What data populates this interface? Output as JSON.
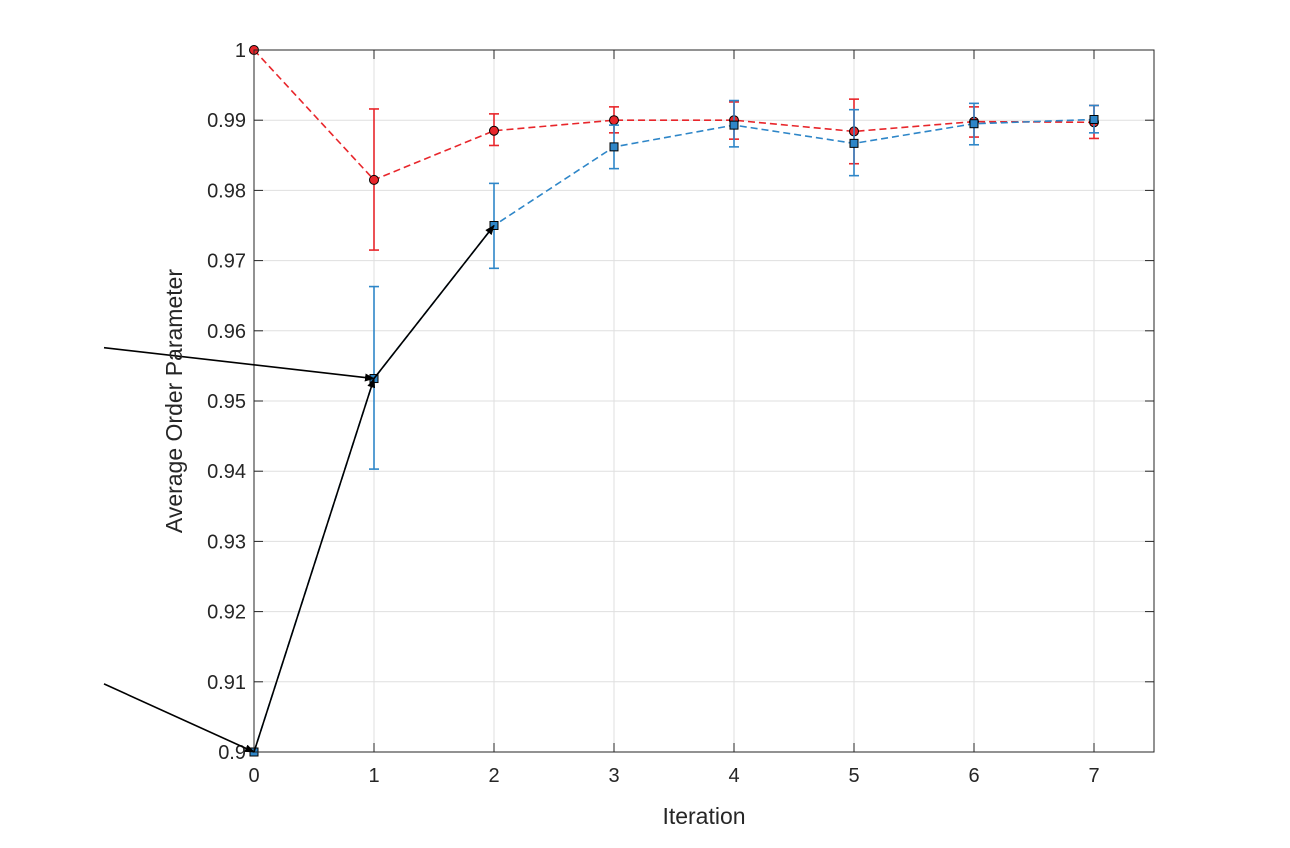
{
  "chart_data": {
    "type": "line",
    "title": "",
    "xlabel": "Iteration",
    "ylabel": "Average Order Parameter",
    "xlim": [
      0,
      7.5
    ],
    "ylim": [
      0.9,
      1.0
    ],
    "xticks": [
      0,
      1,
      2,
      3,
      4,
      5,
      6,
      7
    ],
    "yticks": [
      0.9,
      0.91,
      0.92,
      0.93,
      0.94,
      0.95,
      0.96,
      0.97,
      0.98,
      0.99,
      1.0
    ],
    "xtick_labels": [
      "0",
      "1",
      "2",
      "3",
      "4",
      "5",
      "6",
      "7"
    ],
    "ytick_labels": [
      "0.9",
      "0.91",
      "0.92",
      "0.93",
      "0.94",
      "0.95",
      "0.96",
      "0.97",
      "0.98",
      "0.99",
      "1"
    ],
    "grid": true,
    "legend": "none",
    "series": [
      {
        "color": "#e8262b",
        "marker": "circle",
        "line_style": "dashed",
        "x": [
          0,
          1,
          2,
          3,
          4,
          5,
          6,
          7
        ],
        "y": [
          1.0,
          0.9815,
          0.9885,
          0.99,
          0.99,
          0.9884,
          0.9898,
          0.9897
        ],
        "err_low": [
          null,
          0.9715,
          0.9864,
          0.9882,
          0.9873,
          0.9838,
          0.9876,
          0.9874
        ],
        "err_high": [
          null,
          0.9916,
          0.9909,
          0.9919,
          0.9926,
          0.993,
          0.9919,
          0.9921
        ]
      },
      {
        "color": "#2e86c8",
        "marker": "square",
        "line_style": "dashed",
        "x": [
          0,
          1,
          2,
          3,
          4,
          5,
          6,
          7
        ],
        "y": [
          0.9,
          0.9532,
          0.975,
          0.9862,
          0.9893,
          0.9867,
          0.9895,
          0.9901
        ],
        "err_low": [
          null,
          0.9403,
          0.9689,
          0.9831,
          0.9862,
          0.9821,
          0.9865,
          0.9882
        ],
        "err_high": [
          null,
          0.9663,
          0.981,
          0.9893,
          0.9928,
          0.9915,
          0.9924,
          0.9921
        ]
      }
    ],
    "annotations": [
      {
        "type": "arrow",
        "from": [
          0.2,
          0.8
        ],
        "to": [
          0,
          0.9
        ]
      },
      {
        "type": "arrow",
        "from": [
          0,
          0.9
        ],
        "to": [
          1,
          0.9532
        ]
      },
      {
        "type": "arrow",
        "from": [
          1,
          0.9532
        ],
        "to": [
          2,
          0.975
        ]
      },
      {
        "type": "arrow",
        "from": [
          0.3,
          0.6
        ],
        "to": [
          1,
          0.9532
        ]
      }
    ]
  }
}
